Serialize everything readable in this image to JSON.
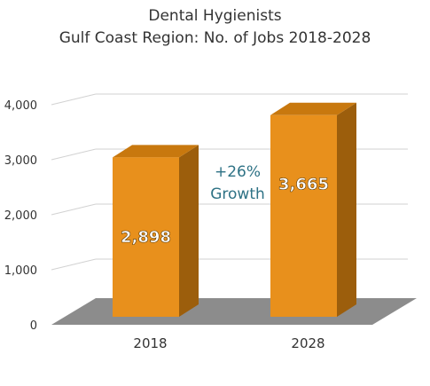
{
  "chart_data": {
    "type": "bar",
    "title": [
      "Dental Hygienists",
      "Gulf Coast Region: No. of Jobs 2018-2028"
    ],
    "categories": [
      "2018",
      "2028"
    ],
    "values": [
      2898,
      3665
    ],
    "value_labels": [
      "2,898",
      "3,665"
    ],
    "ylim": [
      0,
      4000
    ],
    "yticks": [
      0,
      1000,
      2000,
      3000,
      4000
    ],
    "ytick_labels": [
      "0",
      "1,000",
      "2,000",
      "3,000",
      "4,000"
    ],
    "annotation": [
      "+26%",
      "Growth"
    ],
    "grid": true,
    "style": "3d",
    "colors": {
      "bar_front": "#E8901C",
      "bar_top": "#C8780E",
      "bar_side": "#9C5E0C",
      "floor": "#8C8C8C",
      "grid": "#D2D2D2",
      "annotation": "#2E7285",
      "value_text": "#ffffff"
    }
  }
}
